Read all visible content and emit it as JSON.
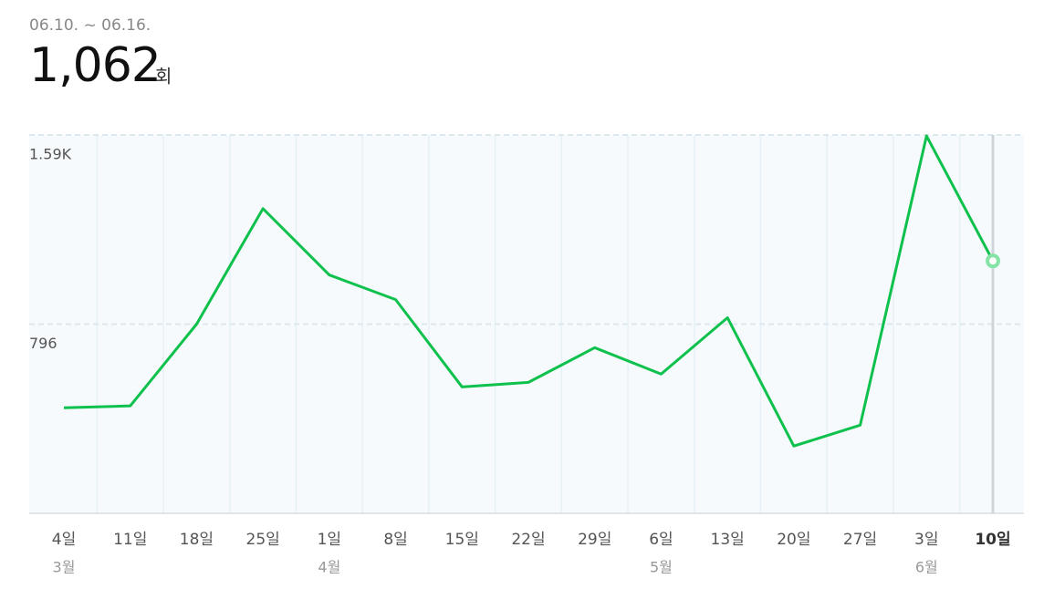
{
  "header": {
    "period": "06.10. ~ 06.16.",
    "total": "1,062",
    "unit": "회"
  },
  "chart_data": {
    "type": "line",
    "categories": [
      "4일",
      "11일",
      "18일",
      "25일",
      "1일",
      "8일",
      "15일",
      "22일",
      "29일",
      "6일",
      "13일",
      "20일",
      "27일",
      "3일",
      "10일"
    ],
    "months": [
      "3월",
      null,
      null,
      null,
      "4월",
      null,
      null,
      null,
      null,
      "5월",
      null,
      null,
      null,
      "6월",
      null
    ],
    "series": [
      {
        "color": "#0ec14c",
        "values": [
          444,
          452,
          796,
          1282,
          1003,
          899,
          532,
          551,
          697,
          586,
          823,
          283,
          371,
          1588,
          1062
        ]
      }
    ],
    "ylim": [
      0,
      1592
    ],
    "yticks": [
      796,
      {
        "value": 1592,
        "label": "1.59K"
      }
    ],
    "grid": true
  }
}
